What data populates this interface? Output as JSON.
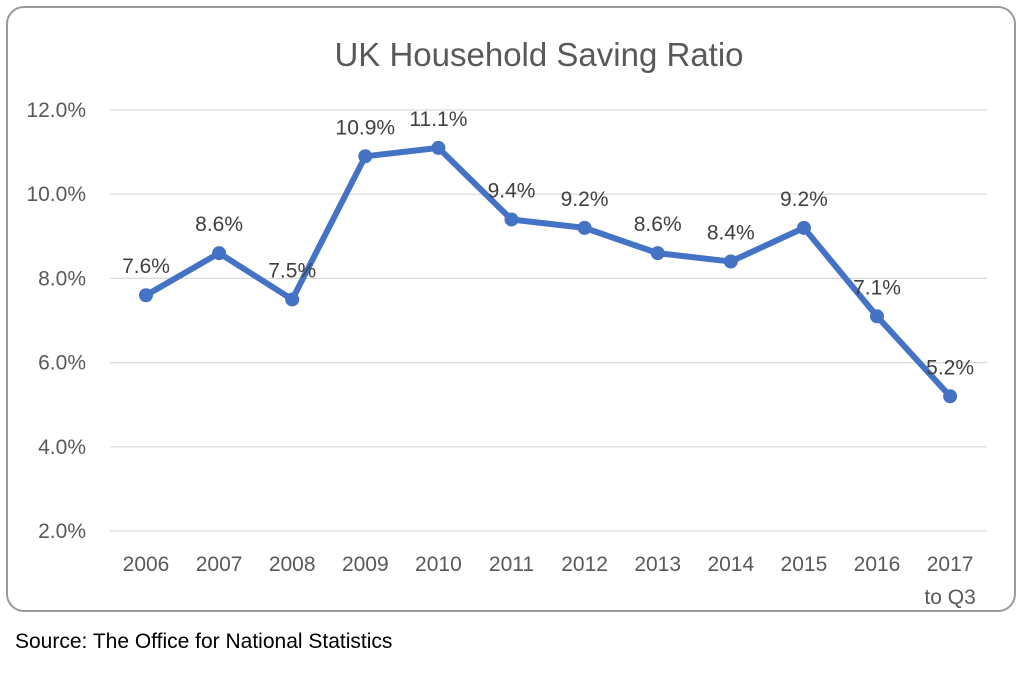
{
  "chart_data": {
    "type": "line",
    "title": "UK Household Saving Ratio",
    "xlabel": "",
    "ylabel": "",
    "categories": [
      [
        "2006"
      ],
      [
        "2007"
      ],
      [
        "2008"
      ],
      [
        "2009"
      ],
      [
        "2010"
      ],
      [
        "2011"
      ],
      [
        "2012"
      ],
      [
        "2013"
      ],
      [
        "2014"
      ],
      [
        "2015"
      ],
      [
        "2016"
      ],
      [
        "2017",
        "to Q3"
      ]
    ],
    "series": [
      {
        "values": [
          7.6,
          8.6,
          7.5,
          10.9,
          11.1,
          9.4,
          9.2,
          8.6,
          8.4,
          9.2,
          7.1,
          5.2
        ],
        "labels": [
          "7.6%",
          "8.6%",
          "7.5%",
          "10.9%",
          "11.1%",
          "9.4%",
          "9.2%",
          "8.6%",
          "8.4%",
          "9.2%",
          "7.1%",
          "5.2%"
        ],
        "color": "#4472c4"
      }
    ],
    "yticks": [
      2.0,
      4.0,
      6.0,
      8.0,
      10.0,
      12.0
    ],
    "ytick_labels": [
      "2.0%",
      "4.0%",
      "6.0%",
      "8.0%",
      "10.0%",
      "12.0%"
    ],
    "ylim": [
      2.0,
      12.0
    ],
    "grid": true,
    "legend": "none"
  },
  "source": "Source: The Office for National Statistics",
  "colors": {
    "line": "#4472c4",
    "grid": "#d9d9d9",
    "frame": "#9a9a9a",
    "text": "#595959"
  }
}
